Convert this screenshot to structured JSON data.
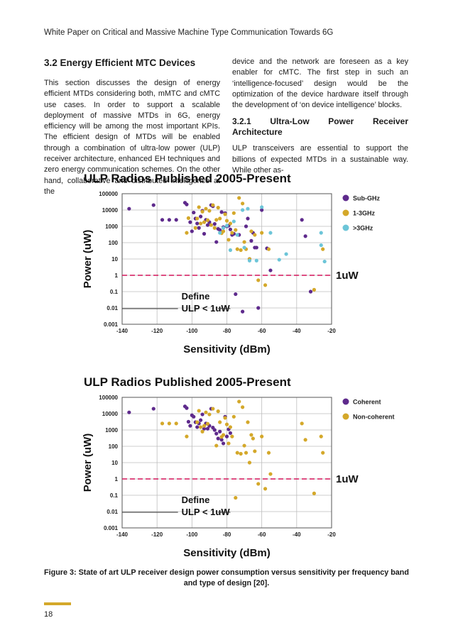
{
  "header": {
    "running_title": "White Paper on Critical and Massive Machine Type Communication Towards 6G"
  },
  "section": {
    "heading": "3.2 Energy Efficient MTC Devices",
    "left_paragraph": "This section discusses the design of energy efficient MTDs considering both, mMTC and cMTC use cases. In order to support a scalable deployment of massive MTDs in 6G, energy efficiency will be among the most important KPIs. The efficient design of MTDs will be enabled through a combination of ultra-low power (ULP) receiver architecture, enhanced EH techniques and zero energy communication schemes. On the other hand, collaborative and distributed intelligence at the",
    "right_paragraph": "device and the network are foreseen as a key enabler for cMTC. The first step in such an ‘intelligence-focused’ design would be the optimization of the device hardware itself through the development of ‘on device intelligence’ blocks.",
    "subsection_heading": "3.2.1 Ultra-Low Power Receiver Architecture",
    "subsection_paragraph": "ULP transceivers are essential to support the billions of expected MTDs in a sustainable way. While other as-"
  },
  "chart_data": [
    {
      "type": "scatter",
      "title": "ULP Radios Published 2005-Present",
      "xlabel": "Sensitivity (dBm)",
      "ylabel": "Power (uW)",
      "xlim": [
        -140,
        -20
      ],
      "ylim": [
        0.001,
        100000
      ],
      "yscale": "log",
      "x_ticks": [
        "-140",
        "-120",
        "-100",
        "-80",
        "-60",
        "-40",
        "-20"
      ],
      "y_ticks": [
        "100000",
        "10000",
        "1000",
        "100",
        "10",
        "1",
        "0.1",
        "0.01",
        "0.001"
      ],
      "grid": true,
      "legend_position": "right",
      "threshold": {
        "value": 1,
        "label": "1uW",
        "color": "#d4145a"
      },
      "annotation": {
        "line1": "Define",
        "line2": "ULP < 1uW"
      },
      "series": [
        {
          "name": "Sub-GHz",
          "color": "#5e2a8c",
          "points": [
            [
              -136,
              12000
            ],
            [
              -122,
              20000
            ],
            [
              -117,
              2500
            ],
            [
              -113,
              2500
            ],
            [
              -109,
              2500
            ],
            [
              -104,
              28000
            ],
            [
              -103,
              22000
            ],
            [
              -101,
              1800
            ],
            [
              -100,
              500
            ],
            [
              -99,
              7000
            ],
            [
              -98,
              3000
            ],
            [
              -97,
              1500
            ],
            [
              -96,
              800
            ],
            [
              -95,
              4000
            ],
            [
              -94,
              9000
            ],
            [
              -93,
              350
            ],
            [
              -92,
              2500
            ],
            [
              -91,
              1200
            ],
            [
              -90,
              1800
            ],
            [
              -89,
              20000
            ],
            [
              -88,
              17000
            ],
            [
              -87,
              1400
            ],
            [
              -86,
              110
            ],
            [
              -85,
              700
            ],
            [
              -84,
              600
            ],
            [
              -83,
              7500
            ],
            [
              -82,
              900
            ],
            [
              -81,
              6500
            ],
            [
              -80,
              1000
            ],
            [
              -79,
              1100
            ],
            [
              -78,
              650
            ],
            [
              -77,
              300
            ],
            [
              -76,
              350
            ],
            [
              -75,
              0.07
            ],
            [
              -73,
              300
            ],
            [
              -71,
              0.006
            ],
            [
              -69,
              1000
            ],
            [
              -68,
              3000
            ],
            [
              -67,
              10
            ],
            [
              -66,
              130
            ],
            [
              -65,
              400
            ],
            [
              -64,
              50
            ],
            [
              -63,
              50
            ],
            [
              -62,
              0.01
            ],
            [
              -60,
              10000
            ],
            [
              -57,
              45
            ],
            [
              -55,
              2
            ],
            [
              -37,
              2500
            ],
            [
              -35,
              250
            ],
            [
              -32,
              0.1
            ]
          ]
        },
        {
          "name": "1-3GHz",
          "color": "#d4a82a",
          "points": [
            [
              -103,
              400
            ],
            [
              -102,
              3200
            ],
            [
              -98,
              800
            ],
            [
              -97,
              3000
            ],
            [
              -96,
              15000
            ],
            [
              -95,
              1500
            ],
            [
              -94,
              8000
            ],
            [
              -93,
              1800
            ],
            [
              -92,
              12000
            ],
            [
              -91,
              2400
            ],
            [
              -90,
              9000
            ],
            [
              -89,
              1200
            ],
            [
              -88,
              20000
            ],
            [
              -87,
              800
            ],
            [
              -86,
              2500
            ],
            [
              -85,
              14000
            ],
            [
              -84,
              3000
            ],
            [
              -83,
              380
            ],
            [
              -82,
              500
            ],
            [
              -81,
              5500
            ],
            [
              -80,
              2200
            ],
            [
              -79,
              150
            ],
            [
              -78,
              1500
            ],
            [
              -77,
              400
            ],
            [
              -76,
              6500
            ],
            [
              -75,
              600
            ],
            [
              -74,
              40
            ],
            [
              -73,
              55000
            ],
            [
              -72,
              35
            ],
            [
              -71,
              25000
            ],
            [
              -70,
              110
            ],
            [
              -69,
              40
            ],
            [
              -67,
              10
            ],
            [
              -66,
              500
            ],
            [
              -64,
              300
            ],
            [
              -62,
              0.5
            ],
            [
              -60,
              400
            ],
            [
              -58,
              0.25
            ],
            [
              -56,
              40
            ],
            [
              -30,
              0.13
            ],
            [
              -25,
              40
            ]
          ]
        },
        {
          "name": ">3GHz",
          "color": "#6cc5d8",
          "points": [
            [
              -84,
              400
            ],
            [
              -82,
              800
            ],
            [
              -80,
              1100
            ],
            [
              -78,
              35
            ],
            [
              -76,
              2000
            ],
            [
              -74,
              300
            ],
            [
              -71,
              10000
            ],
            [
              -70,
              50
            ],
            [
              -68,
              12000
            ],
            [
              -67,
              8
            ],
            [
              -63,
              8
            ],
            [
              -60,
              15000
            ],
            [
              -55,
              400
            ],
            [
              -50,
              9
            ],
            [
              -46,
              20
            ],
            [
              -26,
              400
            ],
            [
              -26,
              70
            ],
            [
              -24,
              7
            ]
          ]
        }
      ]
    },
    {
      "type": "scatter",
      "title": "ULP Radios Published 2005-Present",
      "xlabel": "Sensitivity (dBm)",
      "ylabel": "Power (uW)",
      "xlim": [
        -140,
        -20
      ],
      "ylim": [
        0.001,
        100000
      ],
      "yscale": "log",
      "x_ticks": [
        "-140",
        "-120",
        "-100",
        "-80",
        "-60",
        "-40",
        "-20"
      ],
      "y_ticks": [
        "100000",
        "10000",
        "1000",
        "100",
        "10",
        "1",
        "0.1",
        "0.01",
        "0.001"
      ],
      "grid": true,
      "legend_position": "right",
      "threshold": {
        "value": 1,
        "label": "1uW",
        "color": "#d4145a"
      },
      "annotation": {
        "line1": "Define",
        "line2": "ULP < 1uW"
      },
      "series": [
        {
          "name": "Coherent",
          "color": "#5e2a8c",
          "points": [
            [
              -136,
              12000
            ],
            [
              -122,
              20000
            ],
            [
              -104,
              28000
            ],
            [
              -103,
              22000
            ],
            [
              -102,
              3200
            ],
            [
              -101,
              1800
            ],
            [
              -100,
              8000
            ],
            [
              -99,
              6500
            ],
            [
              -98,
              3000
            ],
            [
              -97,
              1500
            ],
            [
              -96,
              2500
            ],
            [
              -95,
              4000
            ],
            [
              -94,
              9000
            ],
            [
              -93,
              1200
            ],
            [
              -92,
              2500
            ],
            [
              -91,
              1200
            ],
            [
              -90,
              1800
            ],
            [
              -89,
              20000
            ],
            [
              -88,
              1400
            ],
            [
              -87,
              1000
            ],
            [
              -86,
              600
            ],
            [
              -85,
              300
            ],
            [
              -84,
              800
            ],
            [
              -83,
              250
            ],
            [
              -82,
              150
            ],
            [
              -81,
              6500
            ],
            [
              -80,
              400
            ],
            [
              -79,
              1100
            ],
            [
              -78,
              650
            ]
          ]
        },
        {
          "name": "Non-coherent",
          "color": "#d4a82a",
          "points": [
            [
              -117,
              2500
            ],
            [
              -113,
              2500
            ],
            [
              -109,
              2500
            ],
            [
              -103,
              400
            ],
            [
              -97,
              3000
            ],
            [
              -96,
              15000
            ],
            [
              -95,
              1500
            ],
            [
              -94,
              800
            ],
            [
              -93,
              1800
            ],
            [
              -92,
              12000
            ],
            [
              -91,
              2400
            ],
            [
              -90,
              9000
            ],
            [
              -88,
              20000
            ],
            [
              -86,
              110
            ],
            [
              -85,
              14000
            ],
            [
              -84,
              3000
            ],
            [
              -83,
              380
            ],
            [
              -82,
              500
            ],
            [
              -81,
              5500
            ],
            [
              -80,
              2200
            ],
            [
              -79,
              150
            ],
            [
              -78,
              1500
            ],
            [
              -77,
              400
            ],
            [
              -76,
              6500
            ],
            [
              -75,
              0.07
            ],
            [
              -74,
              40
            ],
            [
              -73,
              55000
            ],
            [
              -72,
              35
            ],
            [
              -71,
              25000
            ],
            [
              -70,
              110
            ],
            [
              -69,
              40
            ],
            [
              -68,
              3000
            ],
            [
              -67,
              10
            ],
            [
              -66,
              500
            ],
            [
              -65,
              300
            ],
            [
              -64,
              50
            ],
            [
              -62,
              0.5
            ],
            [
              -60,
              400
            ],
            [
              -58,
              0.25
            ],
            [
              -56,
              40
            ],
            [
              -55,
              2
            ],
            [
              -37,
              2500
            ],
            [
              -35,
              250
            ],
            [
              -30,
              0.13
            ],
            [
              -26,
              400
            ],
            [
              -25,
              40
            ]
          ]
        }
      ]
    }
  ],
  "caption": "Figure 3: State of art ULP receiver design power consumption versus sensitivity per frequency band and type of design [20].",
  "footer": {
    "page_number": "18",
    "accent_color": "#d4a82a"
  }
}
